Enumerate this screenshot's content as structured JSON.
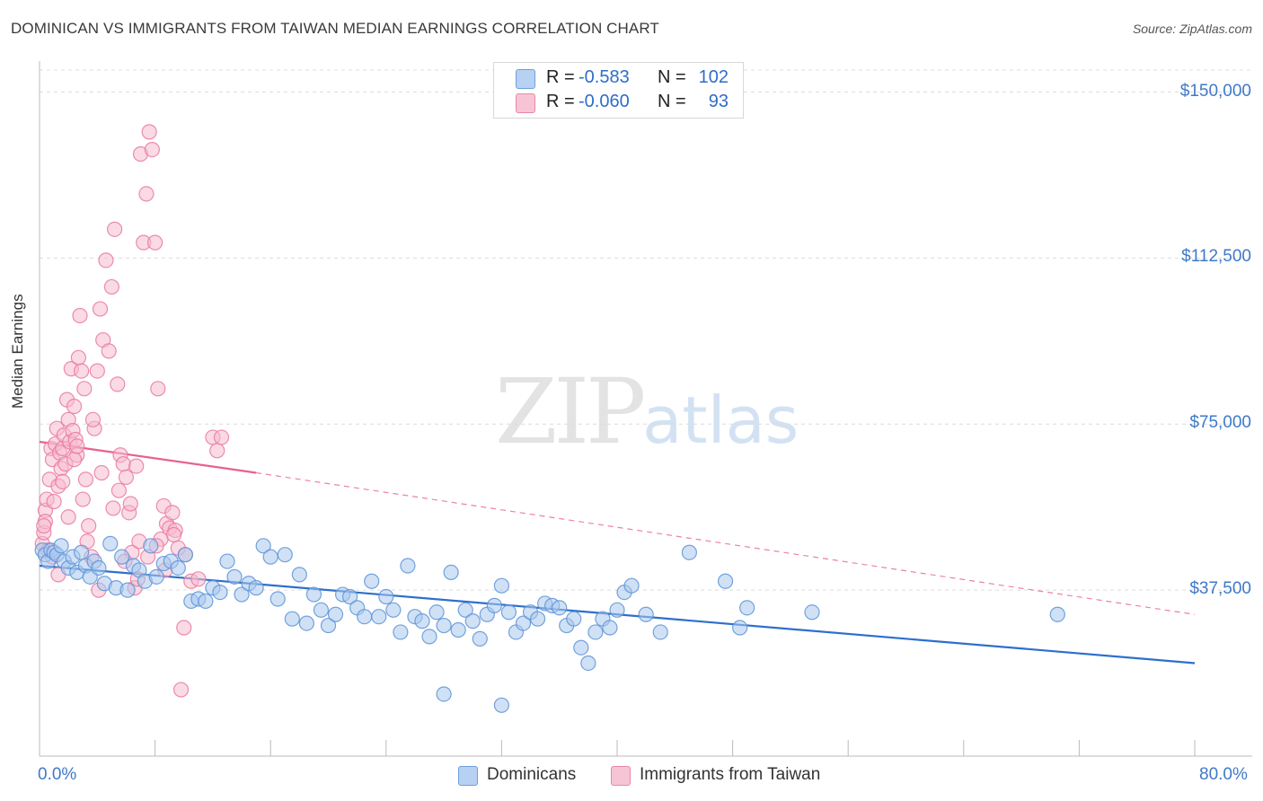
{
  "header": {
    "title": "DOMINICAN VS IMMIGRANTS FROM TAIWAN MEDIAN EARNINGS CORRELATION CHART",
    "source": "Source: ZipAtlas.com"
  },
  "watermark": {
    "zip": "ZIP",
    "atlas": "atlas"
  },
  "legend": {
    "rows": [
      {
        "r_label": "R =",
        "r_value": "-0.583",
        "n_label": "N =",
        "n_value": "102"
      },
      {
        "r_label": "R =",
        "r_value": "-0.060",
        "n_label": "N =",
        "n_value": "93"
      }
    ]
  },
  "bottom_legend": {
    "series1": "Dominicans",
    "series2": "Immigrants from Taiwan"
  },
  "colors": {
    "blue_fill": "#a9c9ef",
    "blue_stroke": "#5d93d6",
    "blue_line": "#2e6fcc",
    "pink_fill": "#f6bcd0",
    "pink_stroke": "#e9799f",
    "pink_line": "#e8608e",
    "grid": "#dcdcdc",
    "axis_text": "#3f79c9"
  },
  "chart_data": {
    "type": "scatter",
    "title": "DOMINICAN VS IMMIGRANTS FROM TAIWAN MEDIAN EARNINGS CORRELATION CHART",
    "xlabel": "",
    "ylabel": "Median Earnings",
    "xlim": [
      0,
      80
    ],
    "ylim": [
      0,
      157000
    ],
    "x_tick_labels": [
      "0.0%",
      "80.0%"
    ],
    "y_ticks": [
      37500,
      75000,
      112500,
      150000
    ],
    "y_tick_labels": [
      "$37,500",
      "$75,000",
      "$112,500",
      "$150,000"
    ],
    "grid": true,
    "series": [
      {
        "name": "Dominicans",
        "r": -0.583,
        "n": 102,
        "trend": {
          "x": [
            0,
            80
          ],
          "y": [
            43000,
            21000
          ],
          "style": "solid"
        },
        "points": [
          [
            0.2,
            46500
          ],
          [
            0.4,
            45500
          ],
          [
            0.6,
            44000
          ],
          [
            0.8,
            46500
          ],
          [
            1.0,
            46000
          ],
          [
            1.2,
            45500
          ],
          [
            1.5,
            47500
          ],
          [
            1.7,
            44000
          ],
          [
            2.0,
            42500
          ],
          [
            2.3,
            45000
          ],
          [
            2.6,
            41500
          ],
          [
            2.9,
            46000
          ],
          [
            3.2,
            43000
          ],
          [
            3.5,
            40500
          ],
          [
            3.8,
            44000
          ],
          [
            4.1,
            42500
          ],
          [
            4.5,
            39000
          ],
          [
            4.9,
            48000
          ],
          [
            5.3,
            38000
          ],
          [
            5.7,
            45000
          ],
          [
            6.1,
            37500
          ],
          [
            6.5,
            43000
          ],
          [
            6.9,
            42000
          ],
          [
            7.3,
            39500
          ],
          [
            7.7,
            47500
          ],
          [
            8.1,
            40500
          ],
          [
            8.6,
            43500
          ],
          [
            9.1,
            44000
          ],
          [
            9.6,
            42500
          ],
          [
            10.1,
            45500
          ],
          [
            10.5,
            35000
          ],
          [
            11.0,
            35500
          ],
          [
            11.5,
            35000
          ],
          [
            12.0,
            38000
          ],
          [
            12.5,
            37000
          ],
          [
            13.0,
            44000
          ],
          [
            13.5,
            40500
          ],
          [
            14.0,
            36500
          ],
          [
            14.5,
            39000
          ],
          [
            15.0,
            38000
          ],
          [
            15.5,
            47500
          ],
          [
            16.0,
            45000
          ],
          [
            16.5,
            35500
          ],
          [
            17.0,
            45500
          ],
          [
            17.5,
            31000
          ],
          [
            18.0,
            41000
          ],
          [
            18.5,
            30000
          ],
          [
            19.0,
            36500
          ],
          [
            19.5,
            33000
          ],
          [
            20.0,
            29500
          ],
          [
            20.5,
            32000
          ],
          [
            21.0,
            36500
          ],
          [
            21.5,
            36000
          ],
          [
            22.0,
            33500
          ],
          [
            22.5,
            31500
          ],
          [
            23.0,
            39500
          ],
          [
            23.5,
            31500
          ],
          [
            24.0,
            36000
          ],
          [
            24.5,
            33000
          ],
          [
            25.0,
            28000
          ],
          [
            25.5,
            43000
          ],
          [
            26.0,
            31500
          ],
          [
            26.5,
            30500
          ],
          [
            27.0,
            27000
          ],
          [
            27.5,
            32500
          ],
          [
            28.0,
            29500
          ],
          [
            28.5,
            41500
          ],
          [
            29.0,
            28500
          ],
          [
            29.5,
            33000
          ],
          [
            30.0,
            30500
          ],
          [
            30.5,
            26500
          ],
          [
            31.0,
            32000
          ],
          [
            31.5,
            34000
          ],
          [
            32.0,
            38500
          ],
          [
            32.5,
            32500
          ],
          [
            33.0,
            28000
          ],
          [
            33.5,
            30000
          ],
          [
            34.0,
            32500
          ],
          [
            34.5,
            31000
          ],
          [
            35.0,
            34500
          ],
          [
            35.5,
            34000
          ],
          [
            36.0,
            33500
          ],
          [
            36.5,
            29500
          ],
          [
            37.0,
            31000
          ],
          [
            37.5,
            24500
          ],
          [
            38.0,
            21000
          ],
          [
            38.5,
            28000
          ],
          [
            39.0,
            31000
          ],
          [
            39.5,
            29000
          ],
          [
            40.0,
            33000
          ],
          [
            40.5,
            37000
          ],
          [
            41.0,
            38500
          ],
          [
            42.0,
            32000
          ],
          [
            43.0,
            28000
          ],
          [
            45.0,
            46000
          ],
          [
            47.5,
            39500
          ],
          [
            48.5,
            29000
          ],
          [
            49.0,
            33500
          ],
          [
            53.5,
            32500
          ],
          [
            70.5,
            32000
          ],
          [
            28.0,
            14000
          ],
          [
            32.0,
            11500
          ]
        ]
      },
      {
        "name": "Immigrants from Taiwan",
        "r": -0.06,
        "n": 93,
        "trend": {
          "x": [
            0,
            15
          ],
          "y": [
            71000,
            64000
          ],
          "style": "solid"
        },
        "trend_extension": {
          "x": [
            15,
            80
          ],
          "y": [
            64000,
            32000
          ],
          "style": "dashed"
        },
        "points": [
          [
            0.2,
            48000
          ],
          [
            0.3,
            50500
          ],
          [
            0.4,
            55500
          ],
          [
            0.5,
            58000
          ],
          [
            0.6,
            46500
          ],
          [
            0.7,
            62500
          ],
          [
            0.8,
            69500
          ],
          [
            0.9,
            67000
          ],
          [
            1.0,
            57500
          ],
          [
            1.1,
            70500
          ],
          [
            1.2,
            74000
          ],
          [
            1.3,
            61000
          ],
          [
            1.4,
            68500
          ],
          [
            1.5,
            65000
          ],
          [
            1.6,
            69500
          ],
          [
            1.7,
            72500
          ],
          [
            1.8,
            66000
          ],
          [
            1.9,
            80500
          ],
          [
            2.0,
            76000
          ],
          [
            2.1,
            71000
          ],
          [
            2.2,
            87500
          ],
          [
            2.3,
            73500
          ],
          [
            2.4,
            79000
          ],
          [
            2.5,
            71500
          ],
          [
            2.6,
            68000
          ],
          [
            2.7,
            90000
          ],
          [
            2.8,
            99500
          ],
          [
            2.9,
            87000
          ],
          [
            3.0,
            58000
          ],
          [
            3.2,
            62500
          ],
          [
            3.4,
            52000
          ],
          [
            3.6,
            45000
          ],
          [
            3.8,
            74000
          ],
          [
            4.0,
            87000
          ],
          [
            4.2,
            101000
          ],
          [
            4.4,
            94000
          ],
          [
            4.6,
            112000
          ],
          [
            4.8,
            91500
          ],
          [
            5.0,
            106000
          ],
          [
            5.2,
            119000
          ],
          [
            5.4,
            84000
          ],
          [
            5.6,
            68000
          ],
          [
            5.8,
            66000
          ],
          [
            6.0,
            63000
          ],
          [
            6.2,
            55000
          ],
          [
            6.4,
            46000
          ],
          [
            6.6,
            38000
          ],
          [
            6.8,
            40000
          ],
          [
            7.0,
            136000
          ],
          [
            7.2,
            116000
          ],
          [
            7.4,
            127000
          ],
          [
            7.6,
            141000
          ],
          [
            7.8,
            137000
          ],
          [
            8.0,
            116000
          ],
          [
            8.2,
            83000
          ],
          [
            8.4,
            49000
          ],
          [
            8.6,
            56500
          ],
          [
            8.8,
            52500
          ],
          [
            9.0,
            51500
          ],
          [
            9.2,
            55000
          ],
          [
            9.4,
            51000
          ],
          [
            9.6,
            47000
          ],
          [
            9.8,
            15000
          ],
          [
            10.0,
            29000
          ],
          [
            10.5,
            39500
          ],
          [
            11.0,
            40000
          ],
          [
            12.0,
            72000
          ],
          [
            12.3,
            69000
          ],
          [
            12.6,
            72000
          ],
          [
            0.4,
            53000
          ],
          [
            0.9,
            45000
          ],
          [
            1.3,
            41000
          ],
          [
            2.4,
            67000
          ],
          [
            3.1,
            83000
          ],
          [
            3.7,
            76000
          ],
          [
            4.3,
            64000
          ],
          [
            5.1,
            56000
          ],
          [
            5.5,
            60000
          ],
          [
            6.3,
            57000
          ],
          [
            6.9,
            48500
          ],
          [
            7.5,
            45000
          ],
          [
            8.1,
            47500
          ],
          [
            8.7,
            42000
          ],
          [
            9.3,
            50000
          ],
          [
            10.1,
            45500
          ],
          [
            1.6,
            62000
          ],
          [
            2.0,
            54000
          ],
          [
            2.6,
            70000
          ],
          [
            3.3,
            48500
          ],
          [
            4.1,
            37500
          ],
          [
            0.3,
            52000
          ],
          [
            5.9,
            44000
          ],
          [
            6.7,
            65500
          ]
        ]
      }
    ]
  }
}
